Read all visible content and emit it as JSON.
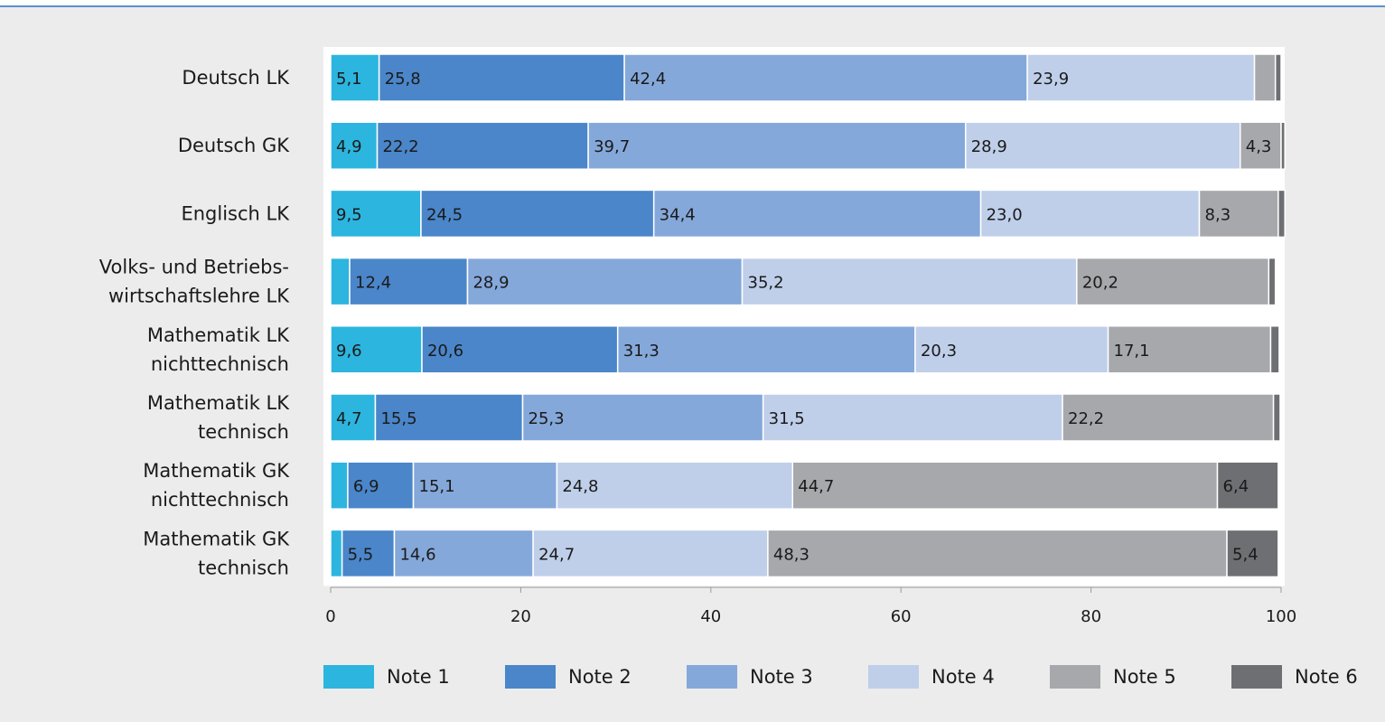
{
  "chart_data": {
    "type": "bar",
    "orientation": "horizontal",
    "stacked": true,
    "categories": [
      [
        "Deutsch LK"
      ],
      [
        "Deutsch GK"
      ],
      [
        "Englisch LK"
      ],
      [
        "Volks- und Betriebs-",
        "wirtschaftslehre LK"
      ],
      [
        "Mathematik LK",
        "nichttechnisch"
      ],
      [
        "Mathematik LK",
        "technisch"
      ],
      [
        "Mathematik GK",
        "nichttechnisch"
      ],
      [
        "Mathematik GK",
        "technisch"
      ]
    ],
    "series": [
      {
        "name": "Note 1",
        "color": "#2cb5de",
        "values": [
          5.1,
          4.9,
          9.5,
          2.0,
          9.6,
          4.7,
          1.8,
          1.2
        ],
        "labels": [
          "5,1",
          "4,9",
          "9,5",
          "",
          "9,6",
          "4,7",
          "",
          ""
        ]
      },
      {
        "name": "Note 2",
        "color": "#4a86c9",
        "values": [
          25.8,
          22.2,
          24.5,
          12.4,
          20.6,
          15.5,
          6.9,
          5.5
        ],
        "labels": [
          "25,8",
          "22,2",
          "24,5",
          "12,4",
          "20,6",
          "15,5",
          "6,9",
          "5,5"
        ]
      },
      {
        "name": "Note 3",
        "color": "#85a8da",
        "values": [
          42.4,
          39.7,
          34.4,
          28.9,
          31.3,
          25.3,
          15.1,
          14.6
        ],
        "labels": [
          "42,4",
          "39,7",
          "34,4",
          "28,9",
          "31,3",
          "25,3",
          "15,1",
          "14,6"
        ]
      },
      {
        "name": "Note 4",
        "color": "#bfcfea",
        "values": [
          23.9,
          28.9,
          23.0,
          35.2,
          20.3,
          31.5,
          24.8,
          24.7
        ],
        "labels": [
          "23,9",
          "28,9",
          "23,0",
          "35,2",
          "20,3",
          "31,5",
          "24,8",
          "24,7"
        ]
      },
      {
        "name": "Note 5",
        "color": "#a6a8ab",
        "values": [
          2.2,
          4.3,
          8.3,
          20.2,
          17.1,
          22.2,
          44.7,
          48.3
        ],
        "labels": [
          "",
          "4,3",
          "8,3",
          "20,2",
          "17,1",
          "22,2",
          "44,7",
          "48,3"
        ]
      },
      {
        "name": "Note 6",
        "color": "#6d6f72",
        "values": [
          0.6,
          0.4,
          0.7,
          0.7,
          0.9,
          0.7,
          6.4,
          5.4
        ],
        "labels": [
          "",
          "",
          "",
          "",
          "",
          "",
          "6,4",
          "5,4"
        ]
      }
    ],
    "xlim": [
      0,
      100
    ],
    "xticks": [
      0,
      20,
      40,
      60,
      80,
      100
    ],
    "xlabel": "",
    "ylabel": "",
    "grid": false,
    "legend_position": "bottom"
  }
}
